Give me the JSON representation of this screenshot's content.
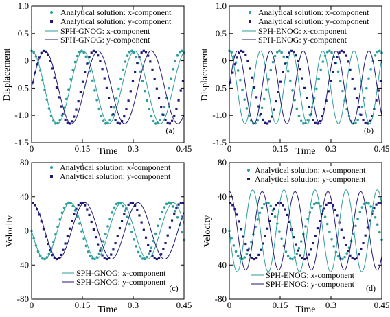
{
  "colors": {
    "x_component": "#2e9e9a",
    "y_component": "#1f1a7a",
    "axis": "#000000"
  },
  "chart_data": [
    {
      "id": "a",
      "type": "line",
      "panel_label": "(a)",
      "xlabel": "Time",
      "ylabel": "Displacement",
      "xlim": [
        0,
        0.45
      ],
      "ylim": [
        -1.5,
        1.0
      ],
      "xticks": [
        0,
        0.15,
        0.3,
        0.45
      ],
      "xtick_labels": [
        "0",
        "0.15",
        "0.3",
        "0.45"
      ],
      "yticks": [
        1.0,
        0.5,
        0,
        -0.5,
        -1.0,
        -1.5
      ],
      "ytick_labels": [
        "1.0",
        "0.5",
        "0",
        "-0.5",
        "-1.0",
        "-1.5"
      ],
      "legend_position": "top-left",
      "series": [
        {
          "name": "Analytical solution: x-component",
          "style": "markers",
          "component": "x",
          "kind": "displacement",
          "period": 0.1475,
          "amplitude": 0.665,
          "offset": -0.485,
          "phase_shift": 0.0
        },
        {
          "name": "Analytical solution: y-component",
          "style": "markers",
          "component": "y",
          "kind": "displacement",
          "period": 0.1475,
          "amplitude": 0.665,
          "offset": -0.485,
          "phase_shift": 0.0
        },
        {
          "name": "SPH-GNOG: x-component",
          "style": "line",
          "component": "x",
          "kind": "displacement",
          "period": 0.152,
          "amplitude": 0.665,
          "offset": -0.485,
          "phase_shift": 0.0
        },
        {
          "name": "SPH-GNOG: y-component",
          "style": "line",
          "component": "y",
          "kind": "displacement",
          "period": 0.157,
          "amplitude": 0.665,
          "offset": -0.485,
          "phase_shift": 0.0
        }
      ]
    },
    {
      "id": "b",
      "type": "line",
      "panel_label": "(b)",
      "xlabel": "Time",
      "ylabel": "Displacement",
      "xlim": [
        0,
        0.45
      ],
      "ylim": [
        -1.5,
        1.0
      ],
      "xticks": [
        0,
        0.15,
        0.3,
        0.45
      ],
      "xtick_labels": [
        "0",
        "0.15",
        "0.3",
        "0.45"
      ],
      "yticks": [
        1.0,
        0.5,
        0,
        -0.5,
        -1.0,
        -1.5
      ],
      "ytick_labels": [
        "1.0",
        "0.5",
        "0",
        "-0.5",
        "-1.0",
        "-1.5"
      ],
      "legend_position": "top-left",
      "series": [
        {
          "name": "Analytical solution: x-component",
          "style": "markers",
          "component": "x",
          "kind": "displacement",
          "period": 0.1475,
          "amplitude": 0.665,
          "offset": -0.485,
          "phase_shift": 0.0
        },
        {
          "name": "Analytical solution: y-component",
          "style": "markers",
          "component": "y",
          "kind": "displacement",
          "period": 0.1475,
          "amplitude": 0.665,
          "offset": -0.485,
          "phase_shift": 0.0
        },
        {
          "name": "SPH-ENOG: x-component",
          "style": "line",
          "component": "x",
          "kind": "displacement",
          "period": 0.092,
          "amplitude": 0.665,
          "offset": -0.485,
          "phase_shift": 0.0
        },
        {
          "name": "SPH-ENOG: y-component",
          "style": "line",
          "component": "y",
          "kind": "displacement",
          "period": 0.097,
          "amplitude": 0.665,
          "offset": -0.485,
          "phase_shift": 0.0
        }
      ]
    },
    {
      "id": "c",
      "type": "line",
      "panel_label": "(c)",
      "xlabel": "Time",
      "ylabel": "Velocity",
      "xlim": [
        0,
        0.45
      ],
      "ylim": [
        -80,
        80
      ],
      "xticks": [
        0,
        0.15,
        0.3,
        0.45
      ],
      "xtick_labels": [
        "0",
        "0.15",
        "0.3",
        "0.45"
      ],
      "yticks": [
        80,
        40,
        0,
        -40,
        -80
      ],
      "ytick_labels": [
        "80",
        "40",
        "0",
        "-40",
        "-80"
      ],
      "legend_top_position": "top-left",
      "legend_bottom_position": "bottom-left",
      "series": [
        {
          "name": "Analytical solution: x-component",
          "style": "markers",
          "component": "x",
          "kind": "velocity",
          "period": 0.1475,
          "amplitude": 33,
          "growth": 0
        },
        {
          "name": "Analytical solution: y-component",
          "style": "markers",
          "component": "y",
          "kind": "velocity",
          "period": 0.1475,
          "amplitude": 33,
          "growth": 0
        },
        {
          "name": "SPH-GNOG: x-component",
          "style": "line",
          "component": "x",
          "kind": "velocity",
          "period": 0.152,
          "amplitude": 33,
          "growth": 0
        },
        {
          "name": "SPH-GNOG: y-component",
          "style": "line",
          "component": "y",
          "kind": "velocity",
          "period": 0.157,
          "amplitude": 33,
          "growth": 0
        }
      ]
    },
    {
      "id": "d",
      "type": "line",
      "panel_label": "(d)",
      "xlabel": "Time",
      "ylabel": "Velocity",
      "xlim": [
        0,
        0.45
      ],
      "ylim": [
        -80,
        80
      ],
      "xticks": [
        0,
        0.15,
        0.3,
        0.45
      ],
      "xtick_labels": [
        "0",
        "0.15",
        "0.3",
        "0.45"
      ],
      "yticks": [
        80,
        40,
        0,
        -40,
        -80
      ],
      "ytick_labels": [
        "80",
        "40",
        "0",
        "-40",
        "-80"
      ],
      "legend_top_position": "top-left",
      "legend_bottom_position": "bottom-left",
      "series": [
        {
          "name": "Analytical solution: x-component",
          "style": "markers",
          "component": "x",
          "kind": "velocity",
          "period": 0.1475,
          "amplitude": 33,
          "growth": 0
        },
        {
          "name": "Analytical solution: y-component",
          "style": "markers",
          "component": "y",
          "kind": "velocity",
          "period": 0.1475,
          "amplitude": 33,
          "growth": 0
        },
        {
          "name": "SPH-ENOG: x-component",
          "style": "line",
          "component": "x",
          "kind": "velocity",
          "period": 0.092,
          "amplitude": 48,
          "growth": 0
        },
        {
          "name": "SPH-ENOG: y-component",
          "style": "line",
          "component": "y",
          "kind": "velocity",
          "period": 0.097,
          "amplitude": 46,
          "growth": 0
        }
      ]
    }
  ]
}
